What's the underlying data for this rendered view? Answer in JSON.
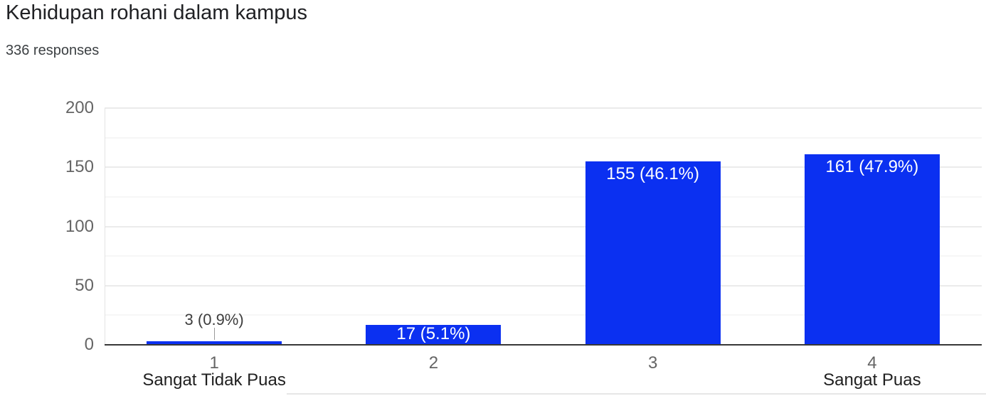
{
  "header": {
    "title": "Kehidupan rohani dalam kampus",
    "responses": "336 responses"
  },
  "colors": {
    "bar": "#0b30f1",
    "bar_inside_label": "#ffffff",
    "annotation_text": "#3d3d3d",
    "axis_text": "#656565",
    "category_text": "#1f1f1f",
    "grid_major": "#ebebeb",
    "grid_minor": "#f6f6f6",
    "baseline": "#383838"
  },
  "chart_data": {
    "type": "bar",
    "title": "Kehidupan rohani dalam kampus",
    "subtitle": "336 responses",
    "total_responses": 336,
    "categories": [
      "1",
      "2",
      "3",
      "4"
    ],
    "category_sublabels": [
      "Sangat Tidak Puas",
      "",
      "",
      "Sangat Puas"
    ],
    "values": [
      3,
      17,
      155,
      161
    ],
    "data_labels": [
      "3 (0.9%)",
      "17 (5.1%)",
      "155 (46.1%)",
      "161 (47.9%)"
    ],
    "label_placement": [
      "outside",
      "inside",
      "inside",
      "inside"
    ],
    "xlabel": "",
    "ylabel": "",
    "ylim": [
      0,
      200
    ],
    "yticks": [
      0,
      50,
      100,
      150,
      200
    ],
    "minor_tick_step": 25,
    "grid": true,
    "legend": "none"
  }
}
